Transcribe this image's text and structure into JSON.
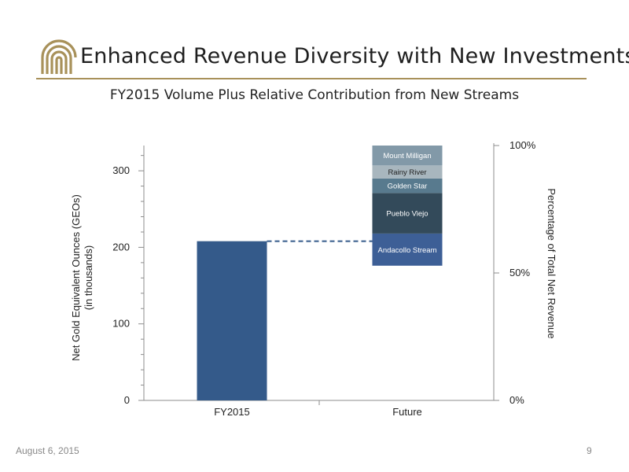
{
  "header": {
    "title": "Enhanced Revenue Diversity with New Investments",
    "subtitle": "FY2015 Volume Plus Relative Contribution from New Streams"
  },
  "footer": {
    "date": "August 6, 2015",
    "page": "9"
  },
  "logo": {
    "icon": "royal-gold-arch-logo",
    "color": "#a8915a"
  },
  "colors": {
    "fy2015_bar": "#345a8a",
    "axis": "#8c8c8c",
    "dash": "#345a8a"
  },
  "chart_data": {
    "type": "bar",
    "title": "FY2015 Volume Plus Relative Contribution from New Streams",
    "categories": [
      "FY2015",
      "Future"
    ],
    "ylabel": "Net Gold Equivalent Ounces (GEOs)\n(in thousands)",
    "ylabel_lines": [
      "Net Gold Equivalent Ounces (GEOs)",
      "(in thousands)"
    ],
    "y2label": "Percentage of Total Net Revenue",
    "ylim": [
      0,
      333
    ],
    "yticks": [
      0,
      100,
      200,
      300
    ],
    "yminor_step": 20,
    "y2lim": [
      0,
      100
    ],
    "y2ticks": [
      {
        "value": 0,
        "label": "0%"
      },
      {
        "value": 50,
        "label": "50%"
      },
      {
        "value": 100,
        "label": "100%"
      }
    ],
    "fy2015_value": 208,
    "future_base": 176,
    "future_segments": [
      {
        "name": "Andacollo Stream",
        "bottom": 176,
        "top": 218,
        "color": "#3d5f96"
      },
      {
        "name": "Pueblo Viejo",
        "bottom": 218,
        "top": 271,
        "color": "#334a5a"
      },
      {
        "name": "Golden Star",
        "bottom": 271,
        "top": 290,
        "color": "#587a8e"
      },
      {
        "name": "Rainy River",
        "bottom": 290,
        "top": 307,
        "color": "#a8b6be"
      },
      {
        "name": "Mount Milligan",
        "bottom": 307,
        "top": 333,
        "color": "#8299a8"
      }
    ],
    "connector": {
      "style": "dashed",
      "value": 208
    },
    "grid": false,
    "legend": "none"
  }
}
